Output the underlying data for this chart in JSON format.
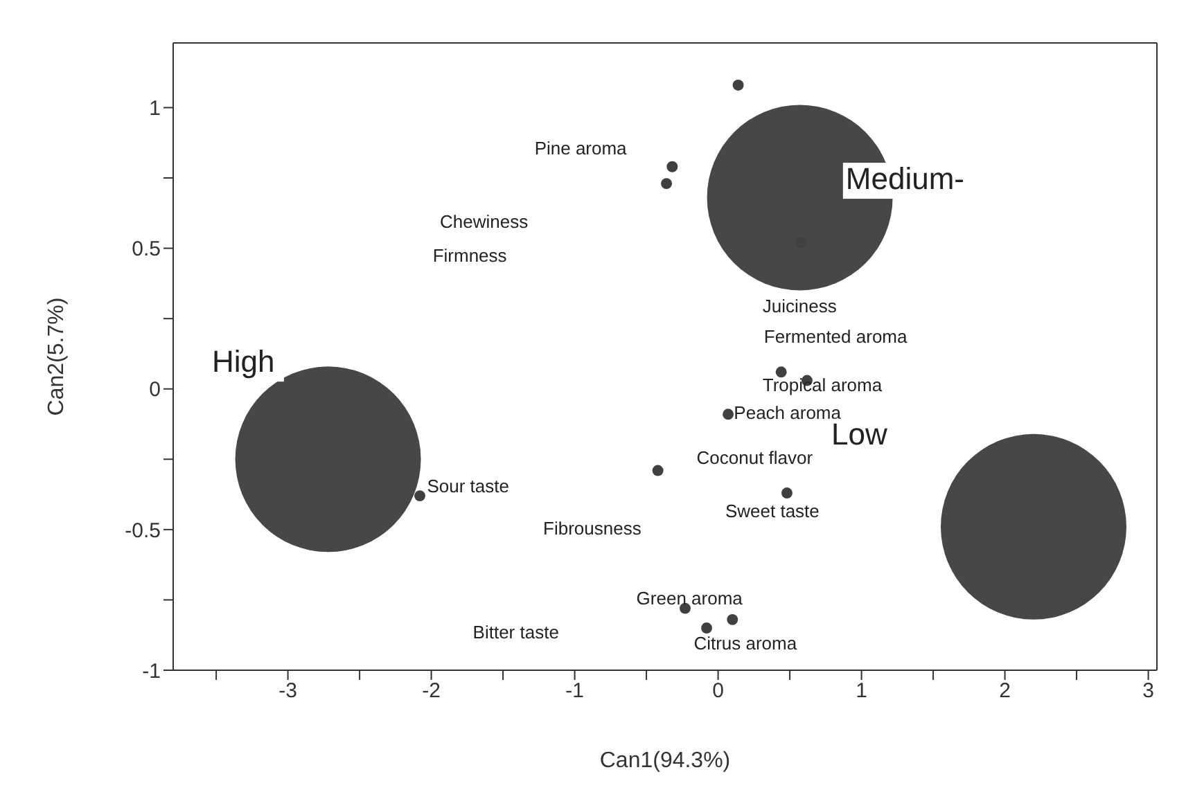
{
  "chart_data": {
    "type": "scatter",
    "xlabel": "Can1(94.3%)",
    "ylabel": "Can2(5.7%)",
    "xlim": [
      -3.8,
      3.06
    ],
    "ylim": [
      -1,
      1.23
    ],
    "xticks": [
      {
        "value": -3.5,
        "label": null
      },
      -3,
      {
        "value": -2.5,
        "label": null
      },
      -2,
      {
        "value": -1.5,
        "label": null
      },
      -1,
      {
        "value": -0.5,
        "label": null
      },
      0,
      {
        "value": 0.5,
        "label": null
      },
      1,
      {
        "value": 1.5,
        "label": null
      },
      2,
      {
        "value": 2.5,
        "label": null
      },
      3
    ],
    "yticks": [
      -1,
      {
        "value": -0.75,
        "label": null
      },
      -0.5,
      {
        "value": -0.25,
        "label": null
      },
      0,
      {
        "value": 0.25,
        "label": null
      },
      0.5,
      {
        "value": 0.75,
        "label": null
      },
      1
    ],
    "series": [
      {
        "type": "bubble",
        "color": "#474747",
        "x": [
          -2.72,
          0.57,
          2.2
        ],
        "values": [
          -0.25,
          0.68,
          -0.49
        ],
        "sizes": [
          1,
          1,
          1
        ]
      },
      {
        "type": "scatter",
        "color": "#404040",
        "marker": "circle",
        "x": [
          0.14,
          -0.32,
          -0.36,
          0.58,
          0.44,
          0.62,
          0.07,
          -0.42,
          -2.08,
          0.48,
          -0.23,
          -0.08,
          0.1
        ],
        "values": [
          1.08,
          0.79,
          0.73,
          0.52,
          0.06,
          0.03,
          -0.09,
          -0.29,
          -0.38,
          -0.37,
          -0.78,
          -0.85,
          -0.82
        ]
      }
    ],
    "annotations": [
      "Pine aroma",
      "Chewiness",
      "Firmness",
      "Juiciness",
      "Fermented aroma",
      "Tropical aroma",
      "Peach aroma",
      "Coconut flavor",
      "Sour taste",
      "Sweet taste",
      "Fibrousness",
      "Green aroma",
      "Bitter taste",
      "Citrus aroma",
      "High",
      "Medium-",
      "Low"
    ]
  }
}
